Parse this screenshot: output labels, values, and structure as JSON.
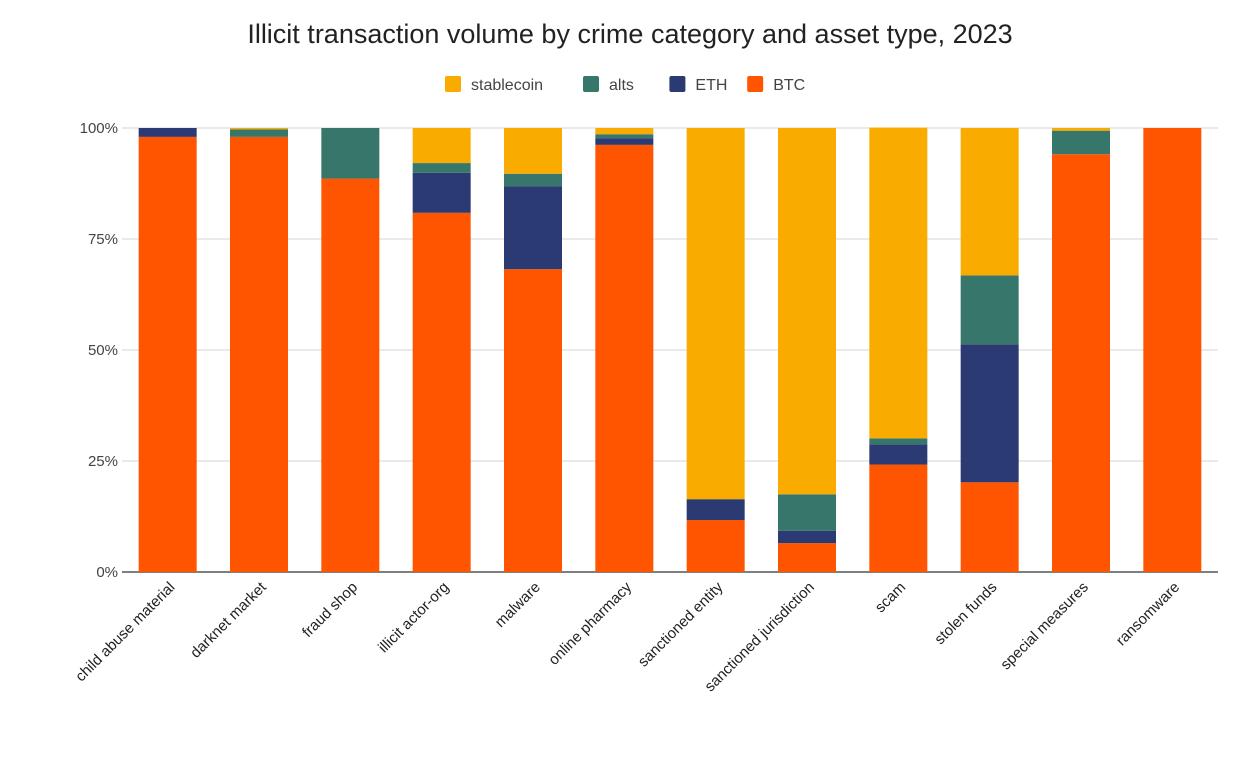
{
  "chart_data": {
    "type": "bar",
    "stacked": "percent",
    "title": "Illicit transaction volume by crime category and asset type, 2023",
    "xlabel": "",
    "ylabel": "",
    "ylim": [
      0,
      100
    ],
    "yticks": [
      "0%",
      "25%",
      "50%",
      "75%",
      "100%"
    ],
    "grid": true,
    "legend_position": "top",
    "legend_order": [
      "stablecoin",
      "alts",
      "ETH",
      "BTC"
    ],
    "categories": [
      "child abuse material",
      "darknet market",
      "fraud shop",
      "illicit actor-org",
      "malware",
      "online pharmacy",
      "sanctioned entity",
      "sanctioned jurisdiction",
      "scam",
      "stolen funds",
      "special measures",
      "ransomware"
    ],
    "series": [
      {
        "name": "BTC",
        "color": "#ff5500",
        "values": [
          98.0,
          98.0,
          88.6,
          80.9,
          68.2,
          96.2,
          11.7,
          6.5,
          24.2,
          20.2,
          94.1,
          100
        ]
      },
      {
        "name": "ETH",
        "color": "#2b3a72",
        "values": [
          2.0,
          0,
          0,
          9.0,
          18.7,
          1.5,
          4.7,
          2.8,
          4.5,
          31.1,
          0,
          0
        ]
      },
      {
        "name": "alts",
        "color": "#37776b",
        "values": [
          0,
          1.7,
          11.4,
          2.2,
          2.8,
          0.9,
          0,
          8.2,
          1.4,
          15.5,
          5.3,
          0
        ]
      },
      {
        "name": "stablecoin",
        "color": "#f9ab00",
        "values": [
          0,
          0.3,
          0,
          7.9,
          10.3,
          1.4,
          83.6,
          82.5,
          70.0,
          33.2,
          0.6,
          0
        ]
      }
    ]
  }
}
